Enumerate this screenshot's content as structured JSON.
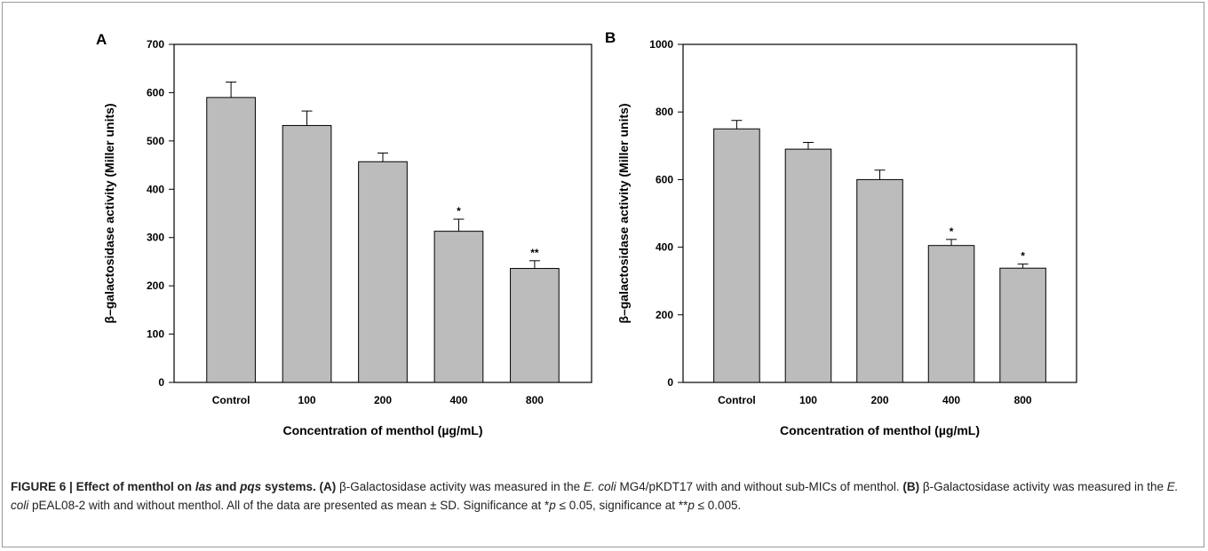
{
  "chart_data": [
    {
      "type": "bar",
      "panel_label": "A",
      "categories": [
        "Control",
        "100",
        "200",
        "400",
        "800"
      ],
      "values": [
        590,
        532,
        457,
        313,
        236
      ],
      "errors": [
        32,
        30,
        18,
        25,
        16
      ],
      "significance": [
        "",
        "",
        "",
        "*",
        "**"
      ],
      "xlabel": "Concentration of menthol (µg/mL)",
      "ylabel": "β–galactosidase activity (Miller units)",
      "ylim": [
        0,
        700
      ],
      "yticks": [
        0,
        100,
        200,
        300,
        400,
        500,
        600,
        700
      ],
      "bar_color": "#bcbcbc",
      "grid": false
    },
    {
      "type": "bar",
      "panel_label": "B",
      "categories": [
        "Control",
        "100",
        "200",
        "400",
        "800"
      ],
      "values": [
        750,
        690,
        600,
        405,
        338
      ],
      "errors": [
        25,
        20,
        28,
        18,
        12
      ],
      "significance": [
        "",
        "",
        "",
        "*",
        "*"
      ],
      "xlabel": "Concentration of menthol (µg/mL)",
      "ylabel": "β–galactosidase activity (Miller units)",
      "ylim": [
        0,
        1000
      ],
      "yticks": [
        0,
        200,
        400,
        600,
        800,
        1000
      ],
      "bar_color": "#bcbcbc",
      "grid": false
    }
  ],
  "caption": {
    "fig_label": "FIGURE 6 |",
    "title_1": "Effect of menthol on",
    "title_las": "las",
    "title_and": "and",
    "title_pqs": "pqs",
    "title_end": "systems.",
    "a_tag": "(A)",
    "a_text_1": "β-Galactosidase activity was measured in the",
    "a_species": "E. coli",
    "a_text_2": "MG4/pKDT17 with and without sub-MICs of menthol.",
    "b_tag": "(B)",
    "b_text_1": "β-Galactosidase activity was measured in the",
    "b_species": "E. coli",
    "b_text_2": "pEAL08-2 with and without menthol. All of the data are presented as mean ± SD. Significance at *",
    "p1": "p",
    "sig_1": "≤ 0.05, significance at **",
    "p2": "p",
    "sig_2": "≤ 0.005."
  }
}
